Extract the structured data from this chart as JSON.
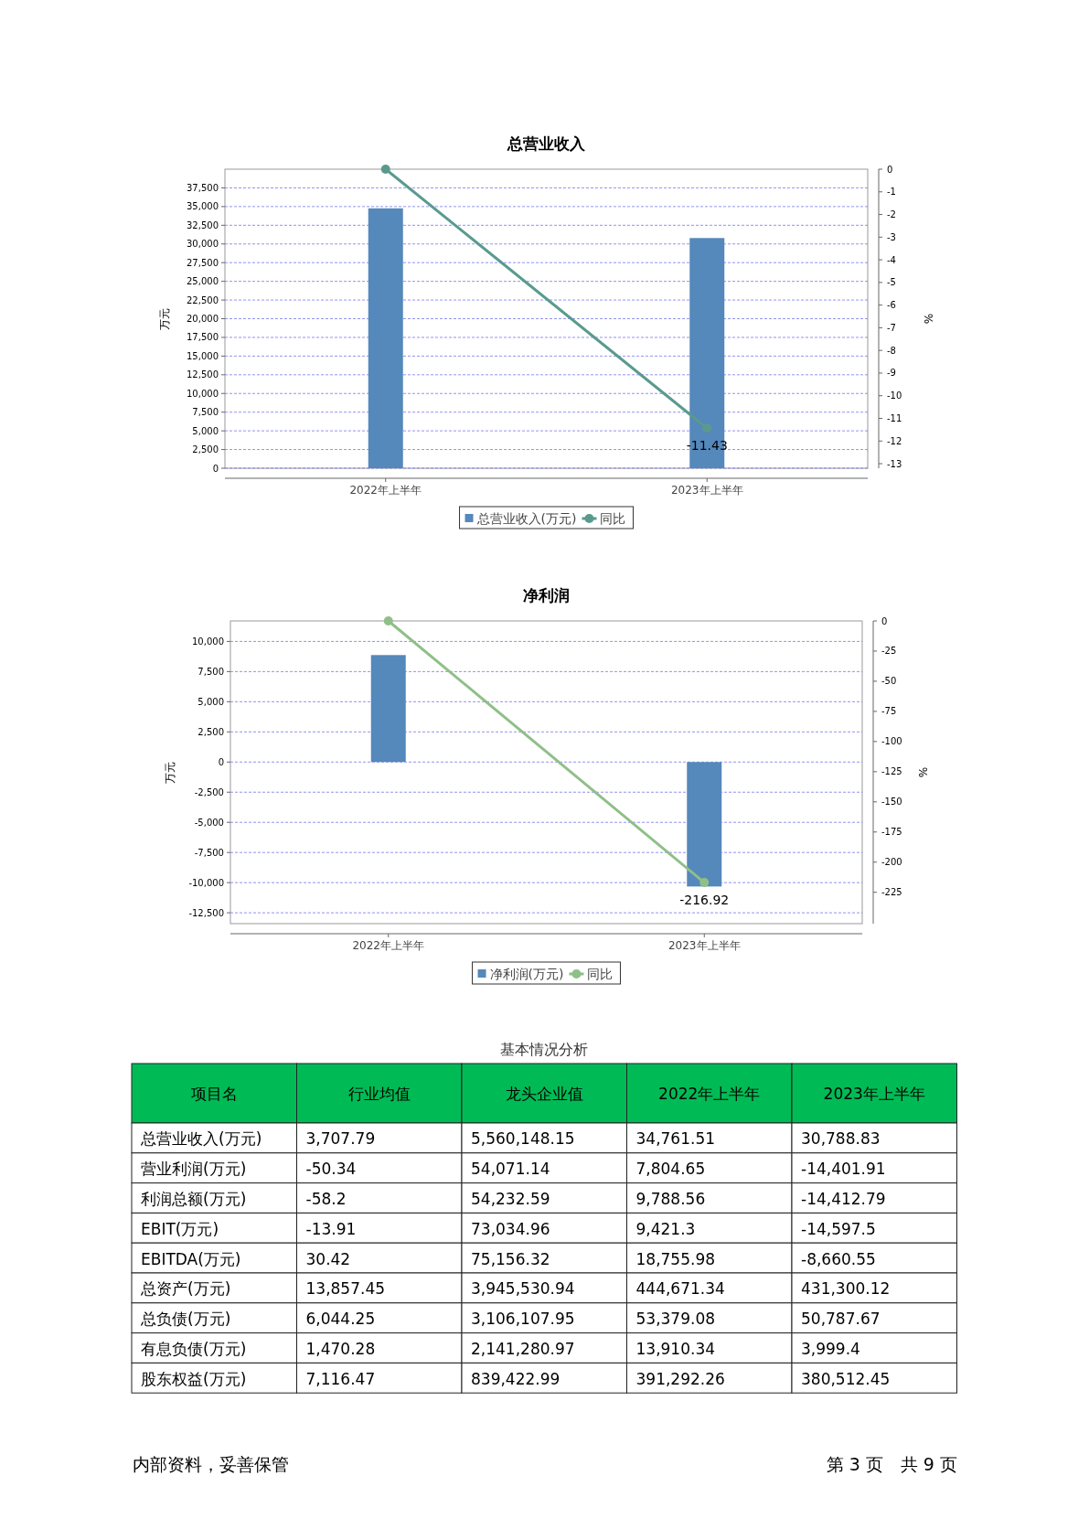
{
  "chart_data": [
    {
      "type": "bar",
      "title": "总营业收入",
      "categories": [
        "2022年上半年",
        "2023年上半年"
      ],
      "ylabel": "万元",
      "y2label": "%",
      "ylim": [
        0,
        40000
      ],
      "yticks": [
        0,
        {
          "value": 2500,
          "label": "2,500"
        },
        {
          "value": 5000,
          "label": "5,000"
        },
        {
          "value": 7500,
          "label": "7,500"
        },
        {
          "value": 10000,
          "label": "10,000"
        },
        {
          "value": 12500,
          "label": "12,500"
        },
        {
          "value": 15000,
          "label": "15,000"
        },
        {
          "value": 17500,
          "label": "17,500"
        },
        {
          "value": 20000,
          "label": "20,000"
        },
        {
          "value": 22500,
          "label": "22,500"
        },
        {
          "value": 25000,
          "label": "25,000"
        },
        {
          "value": 27500,
          "label": "27,500"
        },
        {
          "value": 30000,
          "label": "30,000"
        },
        {
          "value": 32500,
          "label": "32,500"
        },
        {
          "value": 35000,
          "label": "35,000"
        },
        {
          "value": 37500,
          "label": "37,500"
        }
      ],
      "y2lim": [
        -13.2,
        0
      ],
      "y2ticks": [
        0,
        -1,
        -2,
        -3,
        -4,
        -5,
        -6,
        -7,
        -8,
        -9,
        -10,
        -11,
        -12,
        -13
      ],
      "grid": "y",
      "legend": "bottom",
      "series": [
        {
          "name": "总营业收入(万元)",
          "type": "bar",
          "color": "#5588bb",
          "values": [
            34761.51,
            30788.83
          ]
        },
        {
          "name": "同比",
          "type": "line",
          "axis": "y2",
          "color": "#5a9a8e",
          "marker": "circle",
          "values": [
            0,
            -11.43
          ],
          "value_labels": [
            null,
            "-11.43"
          ]
        }
      ]
    },
    {
      "type": "bar",
      "title": "净利润",
      "categories": [
        "2022年上半年",
        "2023年上半年"
      ],
      "ylabel": "万元",
      "y2label": "%",
      "ylim": [
        -13400,
        11700
      ],
      "yticks": [
        {
          "value": -12500,
          "label": "-12,500"
        },
        {
          "value": -10000,
          "label": "-10,000"
        },
        {
          "value": -7500,
          "label": "-7,500"
        },
        {
          "value": -5000,
          "label": "-5,000"
        },
        {
          "value": -2500,
          "label": "-2,500"
        },
        0,
        {
          "value": 2500,
          "label": "2,500"
        },
        {
          "value": 5000,
          "label": "5,000"
        },
        {
          "value": 7500,
          "label": "7,500"
        },
        {
          "value": 10000,
          "label": "10,000"
        }
      ],
      "y2lim": [
        -251,
        0
      ],
      "y2ticks": [
        0,
        -25,
        -50,
        -75,
        -100,
        -125,
        -150,
        -175,
        -200,
        -225
      ],
      "grid": "y",
      "legend": "bottom",
      "series": [
        {
          "name": "净利润(万元)",
          "type": "bar",
          "color": "#5588bb",
          "values": [
            8870,
            -10320
          ]
        },
        {
          "name": "同比",
          "type": "line",
          "axis": "y2",
          "color": "#8fbf88",
          "marker": "circle",
          "values": [
            0,
            -216.92
          ],
          "value_labels": [
            null,
            "-216.92"
          ]
        }
      ]
    },
    {
      "type": "other",
      "title": "基本情况分析",
      "annotations": [
        "项目名",
        "行业均值",
        "龙头企业值",
        "2022年上半年",
        "2023年上半年",
        "总营业收入(万元)",
        "3,707.79",
        "5,560,148.15",
        "34,761.51",
        "30,788.83",
        "营业利润(万元)",
        "-50.34",
        "54,071.14",
        "7,804.65",
        "-14,401.91",
        "利润总额(万元)",
        "-58.2",
        "54,232.59",
        "9,788.56",
        "-14,412.79",
        "EBIT(万元)",
        "-13.91",
        "73,034.96",
        "9,421.3",
        "-14,597.5",
        "EBITDA(万元)",
        "30.42",
        "75,156.32",
        "18,755.98",
        "-8,660.55",
        "总资产(万元)",
        "13,857.45",
        "3,945,530.94",
        "444,671.34",
        "431,300.12",
        "总负债(万元)",
        "6,044.25",
        "3,106,107.95",
        "53,379.08",
        "50,787.67",
        "有息负债(万元)",
        "1,470.28",
        "2,141,280.97",
        "13,910.34",
        "3,999.4",
        "股东权益(万元)",
        "7,116.47",
        "839,422.99",
        "391,292.26",
        "380,512.45"
      ]
    },
    {
      "type": "other",
      "annotations": [
        "内部资料，妥善保管",
        "第 3 页　共 9 页"
      ]
    }
  ]
}
